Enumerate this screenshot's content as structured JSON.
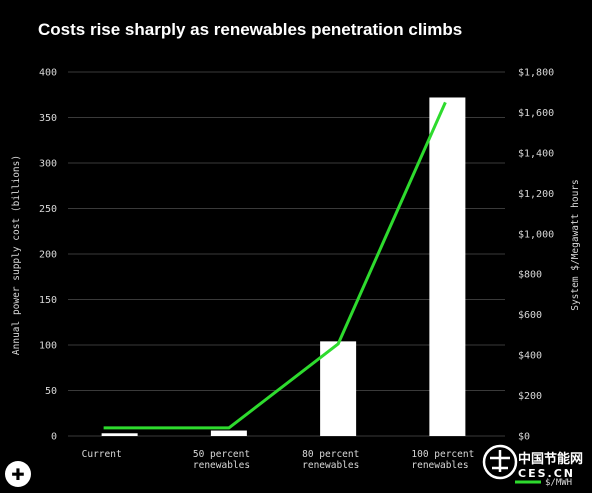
{
  "chart_data": {
    "type": "bar",
    "title": "Costs rise sharply as renewables penetration climbs",
    "ylabel": "Annual power supply cost (billions)",
    "y2label": "System $/Megawatt hours",
    "ylim": [
      0,
      400
    ],
    "y2lim": [
      0,
      1800
    ],
    "yticks": [
      "0",
      "50",
      "100",
      "150",
      "200",
      "250",
      "300",
      "350",
      "400"
    ],
    "y2ticks": [
      "$0",
      "$200",
      "$400",
      "$600",
      "$800",
      "$1,000",
      "$1,200",
      "$1,400",
      "$1,600",
      "$1,800"
    ],
    "grid": true,
    "categories": [
      [
        "Current"
      ],
      [
        "50 percent",
        "renewables"
      ],
      [
        "80 percent",
        "renewables"
      ],
      [
        "100 percent",
        "renewables"
      ]
    ],
    "series": [
      {
        "type": "bar",
        "axis": "left",
        "color": "#ffffff",
        "values": [
          3,
          6,
          104,
          372
        ]
      },
      {
        "type": "line",
        "axis": "right",
        "name": "$/MWH",
        "color": "#2edb2e",
        "values": [
          40,
          40,
          455,
          1650
        ]
      }
    ],
    "legend_position": "bottom-right"
  },
  "watermark": {
    "cn": "中国节能网",
    "en": "CES.CN"
  },
  "plus_icon": {
    "glyph": "✚"
  }
}
